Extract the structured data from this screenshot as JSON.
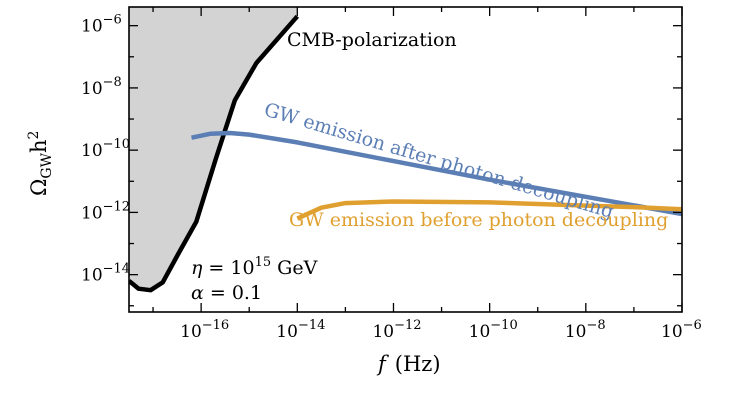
{
  "chart_data": {
    "type": "line",
    "xscale": "log",
    "yscale": "log",
    "xlim_exp": [
      -17.5,
      -6
    ],
    "ylim_exp": [
      -15.2,
      -5.4
    ],
    "xlabel": {
      "symbol": "f",
      "unit": "(Hz)"
    },
    "ylabel": {
      "base": "Ω",
      "sub": "GW",
      "tail": "h",
      "sup": "2"
    },
    "x_ticks": [
      {
        "base": "10",
        "exp": "−16",
        "value_exp": -16
      },
      {
        "base": "10",
        "exp": "−14",
        "value_exp": -14
      },
      {
        "base": "10",
        "exp": "−12",
        "value_exp": -12
      },
      {
        "base": "10",
        "exp": "−10",
        "value_exp": -10
      },
      {
        "base": "10",
        "exp": "−8",
        "value_exp": -8
      },
      {
        "base": "10",
        "exp": "−6",
        "value_exp": -6
      }
    ],
    "y_ticks": [
      {
        "base": "10",
        "exp": "−6",
        "value_exp": -6
      },
      {
        "base": "10",
        "exp": "−8",
        "value_exp": -8
      },
      {
        "base": "10",
        "exp": "−10",
        "value_exp": -10
      },
      {
        "base": "10",
        "exp": "−12",
        "value_exp": -12
      },
      {
        "base": "10",
        "exp": "−14",
        "value_exp": -14
      }
    ],
    "series": [
      {
        "name": "CMB-polarization",
        "color": "#000000",
        "shaded_excluded_region": true,
        "shade_color": "#d3d3d3",
        "points_log10": [
          [
            -17.5,
            -14.2
          ],
          [
            -17.3,
            -14.45
          ],
          [
            -17.05,
            -14.5
          ],
          [
            -16.8,
            -14.25
          ],
          [
            -16.5,
            -13.4
          ],
          [
            -16.1,
            -12.3
          ],
          [
            -15.7,
            -10.3
          ],
          [
            -15.3,
            -8.4
          ],
          [
            -14.85,
            -7.2
          ],
          [
            -14.0,
            -5.7
          ]
        ]
      },
      {
        "name": "GW emission after photon decoupling",
        "color": "#5b7eb5",
        "points_log10": [
          [
            -16.2,
            -9.6
          ],
          [
            -15.8,
            -9.47
          ],
          [
            -15.4,
            -9.45
          ],
          [
            -15.0,
            -9.5
          ],
          [
            -14.0,
            -9.75
          ],
          [
            -12.0,
            -10.35
          ],
          [
            -10.0,
            -10.95
          ],
          [
            -8.0,
            -11.5
          ],
          [
            -6.0,
            -12.05
          ]
        ]
      },
      {
        "name": "GW emission before photon decoupling",
        "color": "#e0a030",
        "points_log10": [
          [
            -14.0,
            -12.2
          ],
          [
            -13.5,
            -11.85
          ],
          [
            -13.0,
            -11.7
          ],
          [
            -12.0,
            -11.65
          ],
          [
            -10.0,
            -11.68
          ],
          [
            -8.0,
            -11.78
          ],
          [
            -7.0,
            -11.83
          ],
          [
            -6.0,
            -11.9
          ]
        ]
      }
    ],
    "annotations": [
      {
        "text": "CMB-polarization",
        "color": "#000000"
      },
      {
        "text": "GW emission after photon decoupling",
        "color": "#5b7eb5"
      },
      {
        "text": "GW emission before photon decoupling",
        "color": "#e0a030"
      }
    ],
    "parameters": {
      "eta": {
        "symbol": "η",
        "equals": " = ",
        "base": "10",
        "exp": "15",
        "unit": " GeV"
      },
      "alpha": {
        "symbol": "α",
        "equals": " = ",
        "value": "0.1"
      }
    }
  }
}
